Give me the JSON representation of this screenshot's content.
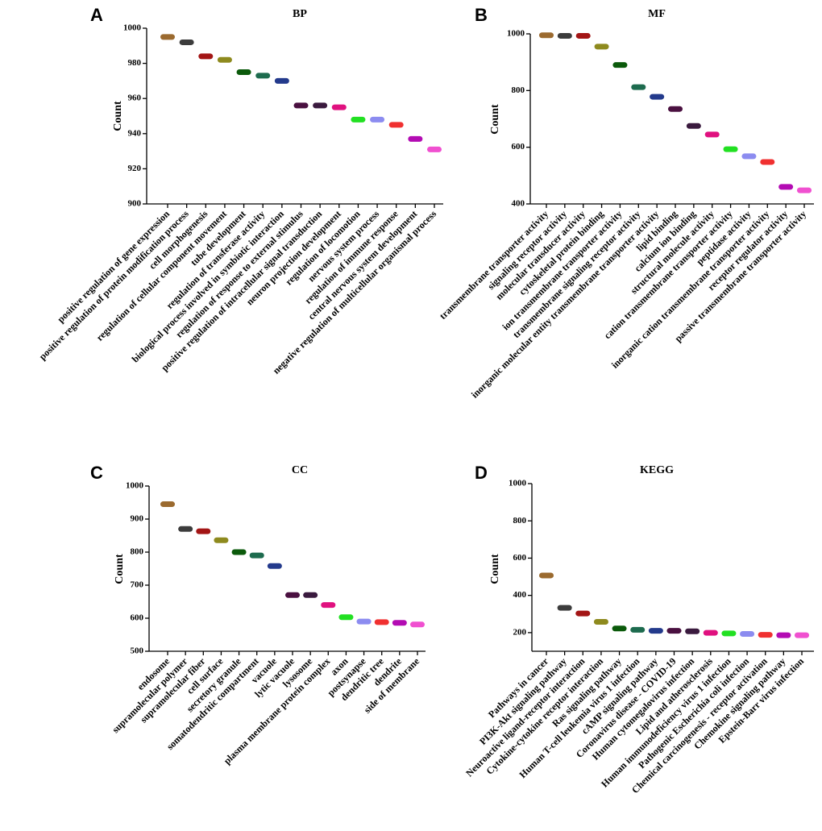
{
  "chart_data": [
    {
      "type": "scatter",
      "panel_label": "A",
      "title": "BP",
      "ylabel": "Count",
      "ylim": [
        900,
        1000
      ],
      "yticks": [
        900,
        920,
        940,
        960,
        980,
        1000
      ],
      "categories": [
        "positive regulation of gene expression",
        "positive regulation of protein modification process",
        "cell morphogenesis",
        "regulation of cellular component movement",
        "tube development",
        "regulation of transferase activity",
        "biological process involved in symbiotic interaction",
        "regulation of response to external stimulus",
        "positive regulation of intracellular signal transduction",
        "neuron projection development",
        "regulation of locomotion",
        "nervous system process",
        "regulation of immune response",
        "central nervous system development",
        "negative regulation of multicellular organismal process"
      ],
      "values": [
        995,
        992,
        984,
        982,
        975,
        973,
        970,
        956,
        956,
        955,
        948,
        948,
        945,
        937,
        931
      ],
      "colors": [
        "#9B6A2F",
        "#3C3C3C",
        "#A31515",
        "#8E8A1E",
        "#0B5A0B",
        "#1D6B4E",
        "#233A8C",
        "#4A1040",
        "#3A1A3E",
        "#E0117F",
        "#22E022",
        "#8C8CF0",
        "#F03030",
        "#B30BB3",
        "#F050D0"
      ]
    },
    {
      "type": "scatter",
      "panel_label": "B",
      "title": "MF",
      "ylabel": "Count",
      "ylim": [
        400,
        1000
      ],
      "yticks": [
        400,
        600,
        800,
        1000
      ],
      "categories": [
        "transmembrane transporter activity",
        "signaling receptor activity",
        "molecular transducer activity",
        "cytoskeletal protein binding",
        "ion transmembrane transporter activity",
        "transmembrane signaling receptor activity",
        "inorganic molecular entity transmembrane transporter activity",
        "lipid binding",
        "calcium ion binding",
        "structural molecule activity",
        "cation transmembrane transporter activity",
        "peptidase activity",
        "inorganic cation transmembrane transporter activity",
        "receptor regulator activity",
        "passive transmembrane transporter activity"
      ],
      "values": [
        995,
        993,
        993,
        955,
        890,
        812,
        778,
        735,
        675,
        645,
        593,
        568,
        548,
        460,
        448
      ],
      "colors": [
        "#9B6A2F",
        "#3C3C3C",
        "#A31515",
        "#8E8A1E",
        "#0B5A0B",
        "#1D6B4E",
        "#233A8C",
        "#4A1040",
        "#3A1A3E",
        "#E0117F",
        "#22E022",
        "#8C8CF0",
        "#F03030",
        "#B30BB3",
        "#F050D0"
      ]
    },
    {
      "type": "scatter",
      "panel_label": "C",
      "title": "CC",
      "ylabel": "Count",
      "ylim": [
        500,
        1000
      ],
      "yticks": [
        500,
        600,
        700,
        800,
        900,
        1000
      ],
      "categories": [
        "endosome",
        "supramolecular polymer",
        "supramolecular fiber",
        "cell surface",
        "secretory granule",
        "somatodendritic compartment",
        "vacuole",
        "lytic vacuole",
        "lysosome",
        "plasma membrane protein complex",
        "axon",
        "postsynapse",
        "dendritic tree",
        "dendrite",
        "side of membrane"
      ],
      "values": [
        945,
        870,
        863,
        836,
        800,
        790,
        758,
        670,
        670,
        640,
        603,
        590,
        588,
        586,
        581
      ],
      "colors": [
        "#9B6A2F",
        "#3C3C3C",
        "#A31515",
        "#8E8A1E",
        "#0B5A0B",
        "#1D6B4E",
        "#233A8C",
        "#4A1040",
        "#3A1A3E",
        "#E0117F",
        "#22E022",
        "#8C8CF0",
        "#F03030",
        "#B30BB3",
        "#F050D0"
      ]
    },
    {
      "type": "scatter",
      "panel_label": "D",
      "title": "KEGG",
      "ylabel": "Count",
      "ylim": [
        100,
        1000
      ],
      "yticks": [
        200,
        400,
        600,
        800,
        1000
      ],
      "categories": [
        "Pathways in cancer",
        "PI3K-Akt signaling pathway",
        "Neuroactive ligand-receptor interaction",
        "Cytokine-cytokine receptor interaction",
        "Ras signaling pathway",
        "Human T-cell leukemia virus 1 infection",
        "cAMP signaling pathway",
        "Coronavirus disease - COVID-19",
        "Human cytomegalovirus infection",
        "Lipid and atherosclerosis",
        "Human immunodeficiency virus 1 infection",
        "Pathogenic Escherichia coli infection",
        "Chemical carcinogenesis - receptor activation",
        "Chemokine signaling pathway",
        "Epstein-Barr virus infection"
      ],
      "values": [
        507,
        333,
        303,
        258,
        222,
        215,
        210,
        210,
        207,
        199,
        196,
        193,
        188,
        186,
        186
      ],
      "colors": [
        "#9B6A2F",
        "#3C3C3C",
        "#A31515",
        "#8E8A1E",
        "#0B5A0B",
        "#1D6B4E",
        "#233A8C",
        "#4A1040",
        "#3A1A3E",
        "#E0117F",
        "#22E022",
        "#8C8CF0",
        "#F03030",
        "#B30BB3",
        "#F050D0"
      ]
    }
  ]
}
